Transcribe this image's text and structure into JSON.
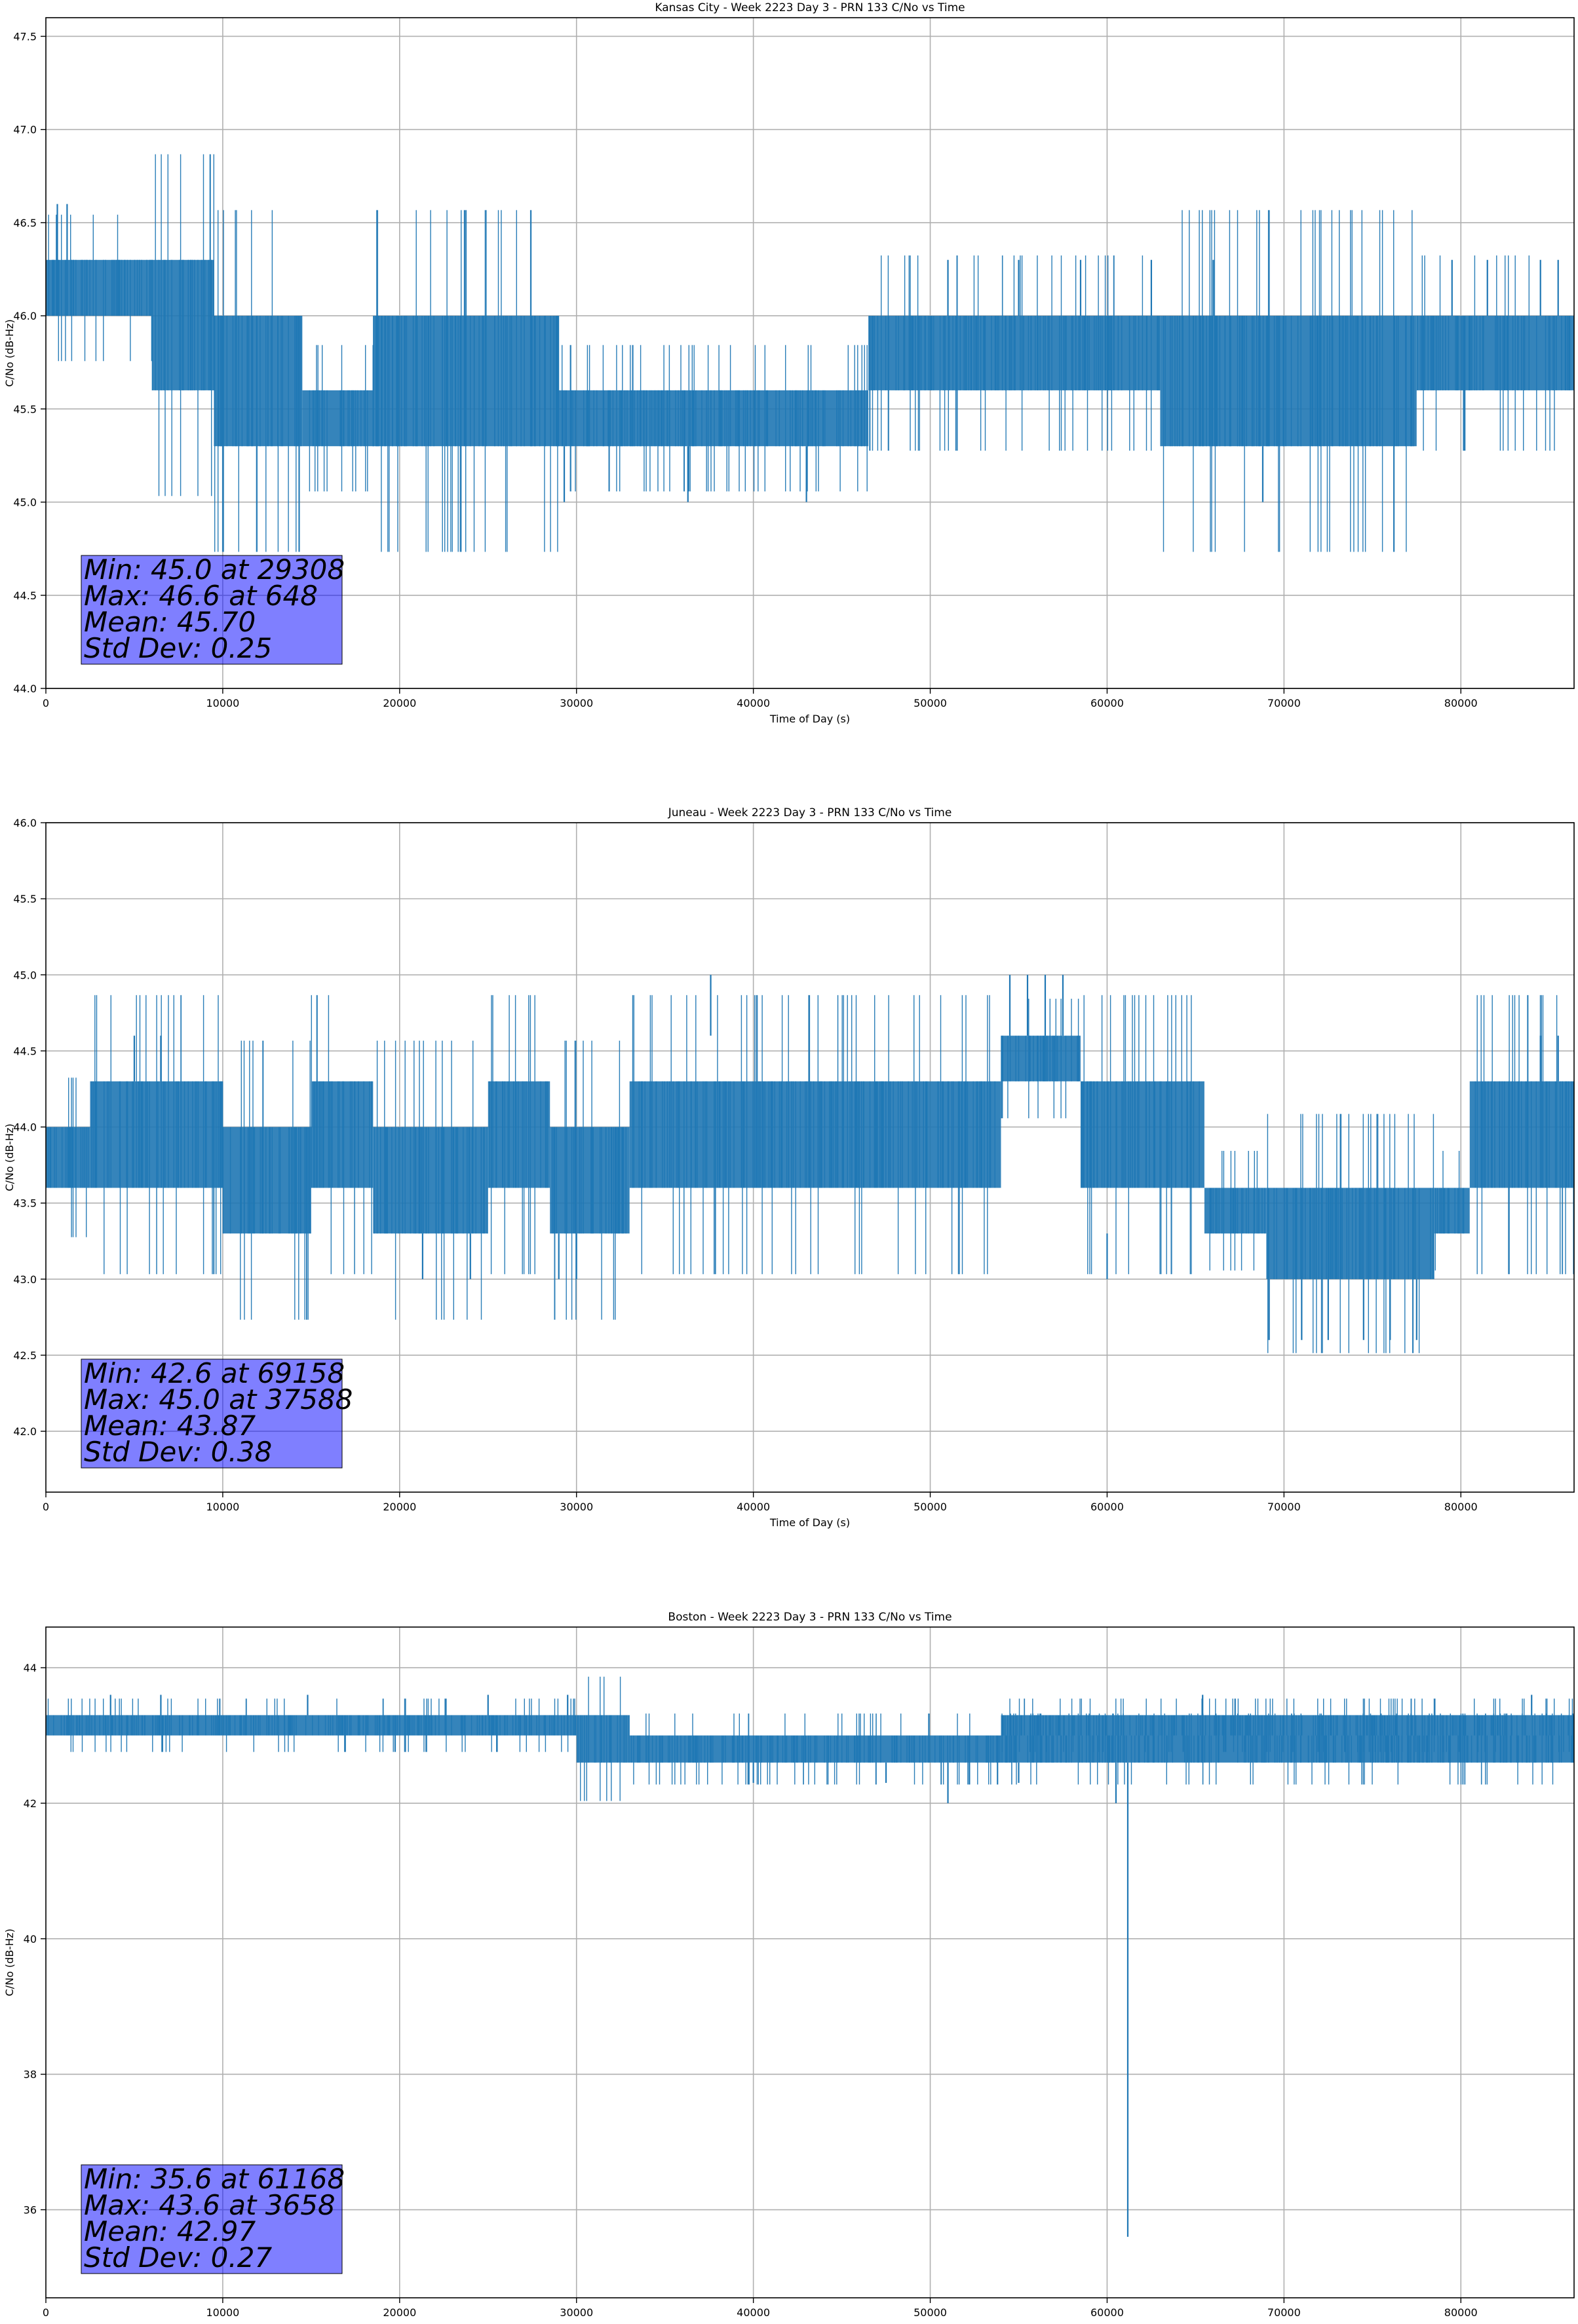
{
  "chart_data": [
    {
      "type": "line",
      "title": "Kansas City - Week 2223 Day 3 - PRN 133 C/No vs Time",
      "xlabel": "Time of Day (s)",
      "ylabel": "C/No (dB-Hz)",
      "xlim": [
        0,
        86400
      ],
      "ylim": [
        44.0,
        47.6
      ],
      "xticks": [
        0,
        10000,
        20000,
        30000,
        40000,
        50000,
        60000,
        70000,
        80000
      ],
      "yticks": [
        44.0,
        44.5,
        45.0,
        45.5,
        46.0,
        46.5,
        47.0,
        47.5
      ],
      "ytick_decimals": 1,
      "grid": true,
      "series": [
        {
          "color": "#1f77b4",
          "segments": [
            {
              "x0": 0,
              "x1": 6000,
              "lo": 46.0,
              "hi": 46.3
            },
            {
              "x0": 6000,
              "x1": 9500,
              "lo": 45.6,
              "hi": 46.3
            },
            {
              "x0": 9500,
              "x1": 14500,
              "lo": 45.3,
              "hi": 46.0
            },
            {
              "x0": 14500,
              "x1": 18500,
              "lo": 45.3,
              "hi": 45.6
            },
            {
              "x0": 18500,
              "x1": 29000,
              "lo": 45.3,
              "hi": 46.0
            },
            {
              "x0": 29000,
              "x1": 46500,
              "lo": 45.3,
              "hi": 45.6
            },
            {
              "x0": 46500,
              "x1": 50500,
              "lo": 45.6,
              "hi": 46.0
            },
            {
              "x0": 50500,
              "x1": 63000,
              "lo": 45.6,
              "hi": 46.0
            },
            {
              "x0": 63000,
              "x1": 77500,
              "lo": 45.3,
              "hi": 46.0
            },
            {
              "x0": 77500,
              "x1": 86400,
              "lo": 45.6,
              "hi": 46.0
            }
          ],
          "spikes": [
            {
              "x": 648,
              "lo": 46.0,
              "hi": 46.6
            },
            {
              "x": 1200,
              "lo": 46.0,
              "hi": 46.6
            },
            {
              "x": 29308,
              "lo": 45.0,
              "hi": 45.3
            },
            {
              "x": 36300,
              "lo": 45.0,
              "hi": 45.3
            },
            {
              "x": 43000,
              "lo": 45.0,
              "hi": 45.3
            },
            {
              "x": 68800,
              "lo": 45.0,
              "hi": 45.3
            },
            {
              "x": 51000,
              "lo": 46.0,
              "hi": 46.3
            },
            {
              "x": 55000,
              "lo": 46.0,
              "hi": 46.3
            },
            {
              "x": 58500,
              "lo": 46.0,
              "hi": 46.3
            },
            {
              "x": 62500,
              "lo": 46.0,
              "hi": 46.3
            },
            {
              "x": 66000,
              "lo": 46.0,
              "hi": 46.3
            },
            {
              "x": 79500,
              "lo": 46.0,
              "hi": 46.3
            },
            {
              "x": 81500,
              "lo": 46.0,
              "hi": 46.3
            },
            {
              "x": 84500,
              "lo": 46.0,
              "hi": 46.3
            },
            {
              "x": 85500,
              "lo": 46.0,
              "hi": 46.3
            }
          ]
        }
      ],
      "stats": [
        "Min: 45.0 at 29308",
        "Max: 46.6 at 648",
        "Mean: 45.70",
        "Std Dev: 0.25"
      ]
    },
    {
      "type": "line",
      "title": "Juneau - Week 2223 Day 3 - PRN 133 C/No vs Time",
      "xlabel": "Time of Day (s)",
      "ylabel": "C/No (dB-Hz)",
      "xlim": [
        0,
        86400
      ],
      "ylim": [
        41.6,
        46.0
      ],
      "xticks": [
        0,
        10000,
        20000,
        30000,
        40000,
        50000,
        60000,
        70000,
        80000
      ],
      "yticks": [
        42.0,
        42.5,
        43.0,
        43.5,
        44.0,
        44.5,
        45.0,
        45.5,
        46.0
      ],
      "ytick_decimals": 1,
      "grid": true,
      "series": [
        {
          "color": "#1f77b4",
          "segments": [
            {
              "x0": 0,
              "x1": 2500,
              "lo": 43.6,
              "hi": 44.0
            },
            {
              "x0": 2500,
              "x1": 10000,
              "lo": 43.6,
              "hi": 44.3
            },
            {
              "x0": 10000,
              "x1": 15000,
              "lo": 43.3,
              "hi": 44.0
            },
            {
              "x0": 15000,
              "x1": 18500,
              "lo": 43.6,
              "hi": 44.3
            },
            {
              "x0": 18500,
              "x1": 25000,
              "lo": 43.3,
              "hi": 44.0
            },
            {
              "x0": 25000,
              "x1": 28500,
              "lo": 43.6,
              "hi": 44.3
            },
            {
              "x0": 28500,
              "x1": 33000,
              "lo": 43.3,
              "hi": 44.0
            },
            {
              "x0": 33000,
              "x1": 54000,
              "lo": 43.6,
              "hi": 44.3
            },
            {
              "x0": 54000,
              "x1": 58500,
              "lo": 44.3,
              "hi": 44.6
            },
            {
              "x0": 58500,
              "x1": 65500,
              "lo": 43.6,
              "hi": 44.3
            },
            {
              "x0": 65500,
              "x1": 69000,
              "lo": 43.3,
              "hi": 43.6
            },
            {
              "x0": 69000,
              "x1": 78500,
              "lo": 43.0,
              "hi": 43.6
            },
            {
              "x0": 78500,
              "x1": 80500,
              "lo": 43.3,
              "hi": 43.6
            },
            {
              "x0": 80500,
              "x1": 86400,
              "lo": 43.6,
              "hi": 44.3
            }
          ],
          "spikes": [
            {
              "x": 37588,
              "lo": 44.6,
              "hi": 45.0
            },
            {
              "x": 54500,
              "lo": 44.6,
              "hi": 45.0
            },
            {
              "x": 55500,
              "lo": 44.6,
              "hi": 45.0
            },
            {
              "x": 56500,
              "lo": 44.6,
              "hi": 45.0
            },
            {
              "x": 57500,
              "lo": 44.6,
              "hi": 45.0
            },
            {
              "x": 69158,
              "lo": 42.6,
              "hi": 43.0
            },
            {
              "x": 71000,
              "lo": 42.6,
              "hi": 43.0
            },
            {
              "x": 72500,
              "lo": 42.6,
              "hi": 43.0
            },
            {
              "x": 74500,
              "lo": 42.6,
              "hi": 43.0
            },
            {
              "x": 76000,
              "lo": 42.6,
              "hi": 43.0
            },
            {
              "x": 77500,
              "lo": 42.6,
              "hi": 43.0
            },
            {
              "x": 21300,
              "lo": 43.0,
              "hi": 43.3
            },
            {
              "x": 24000,
              "lo": 43.0,
              "hi": 43.3
            },
            {
              "x": 29000,
              "lo": 43.0,
              "hi": 43.3
            },
            {
              "x": 30000,
              "lo": 43.0,
              "hi": 43.3
            },
            {
              "x": 60000,
              "lo": 43.0,
              "hi": 43.3
            },
            {
              "x": 5000,
              "lo": 44.3,
              "hi": 44.6
            },
            {
              "x": 6500,
              "lo": 44.3,
              "hi": 44.6
            },
            {
              "x": 84500,
              "lo": 44.3,
              "hi": 44.6
            },
            {
              "x": 85500,
              "lo": 44.3,
              "hi": 44.6
            }
          ]
        }
      ],
      "stats": [
        "Min: 42.6 at 69158",
        "Max: 45.0 at 37588",
        "Mean: 43.87",
        "Std Dev: 0.38"
      ]
    },
    {
      "type": "line",
      "title": "Boston - Week 2223 Day 3 - PRN 133 C/No vs Time",
      "xlabel": "Time of Day (s)",
      "ylabel": "C/No (dB-Hz)",
      "xlim": [
        0,
        86400
      ],
      "ylim": [
        34.7,
        44.6
      ],
      "xticks": [
        0,
        10000,
        20000,
        30000,
        40000,
        50000,
        60000,
        70000,
        80000
      ],
      "yticks": [
        36,
        38,
        40,
        42,
        44
      ],
      "ytick_decimals": 0,
      "grid": true,
      "series": [
        {
          "color": "#1f77b4",
          "segments": [
            {
              "x0": 0,
              "x1": 30000,
              "lo": 43.0,
              "hi": 43.3
            },
            {
              "x0": 30000,
              "x1": 33000,
              "lo": 42.6,
              "hi": 43.3
            },
            {
              "x0": 33000,
              "x1": 86400,
              "lo": 42.6,
              "hi": 43.0
            },
            {
              "x0": 54000,
              "x1": 86400,
              "lo": 43.0,
              "hi": 43.3
            }
          ],
          "spikes": [
            {
              "x": 61168,
              "lo": 35.6,
              "hi": 42.6
            },
            {
              "x": 3658,
              "lo": 43.3,
              "hi": 43.6
            },
            {
              "x": 6500,
              "lo": 43.3,
              "hi": 43.6
            },
            {
              "x": 14800,
              "lo": 43.3,
              "hi": 43.6
            },
            {
              "x": 25000,
              "lo": 43.3,
              "hi": 43.6
            },
            {
              "x": 29500,
              "lo": 43.3,
              "hi": 43.6
            },
            {
              "x": 65400,
              "lo": 43.3,
              "hi": 43.6
            },
            {
              "x": 84000,
              "lo": 43.3,
              "hi": 43.6
            },
            {
              "x": 51000,
              "lo": 42.0,
              "hi": 42.6
            },
            {
              "x": 60500,
              "lo": 42.0,
              "hi": 42.6
            },
            {
              "x": 47500,
              "lo": 42.3,
              "hi": 42.6
            },
            {
              "x": 55000,
              "lo": 42.3,
              "hi": 42.6
            },
            {
              "x": 40000,
              "lo": 42.3,
              "hi": 42.6
            }
          ]
        }
      ],
      "stats": [
        "Min: 35.6 at 61168",
        "Max: 43.6 at 3658",
        "Mean: 42.97",
        "Std Dev: 0.27"
      ]
    }
  ]
}
